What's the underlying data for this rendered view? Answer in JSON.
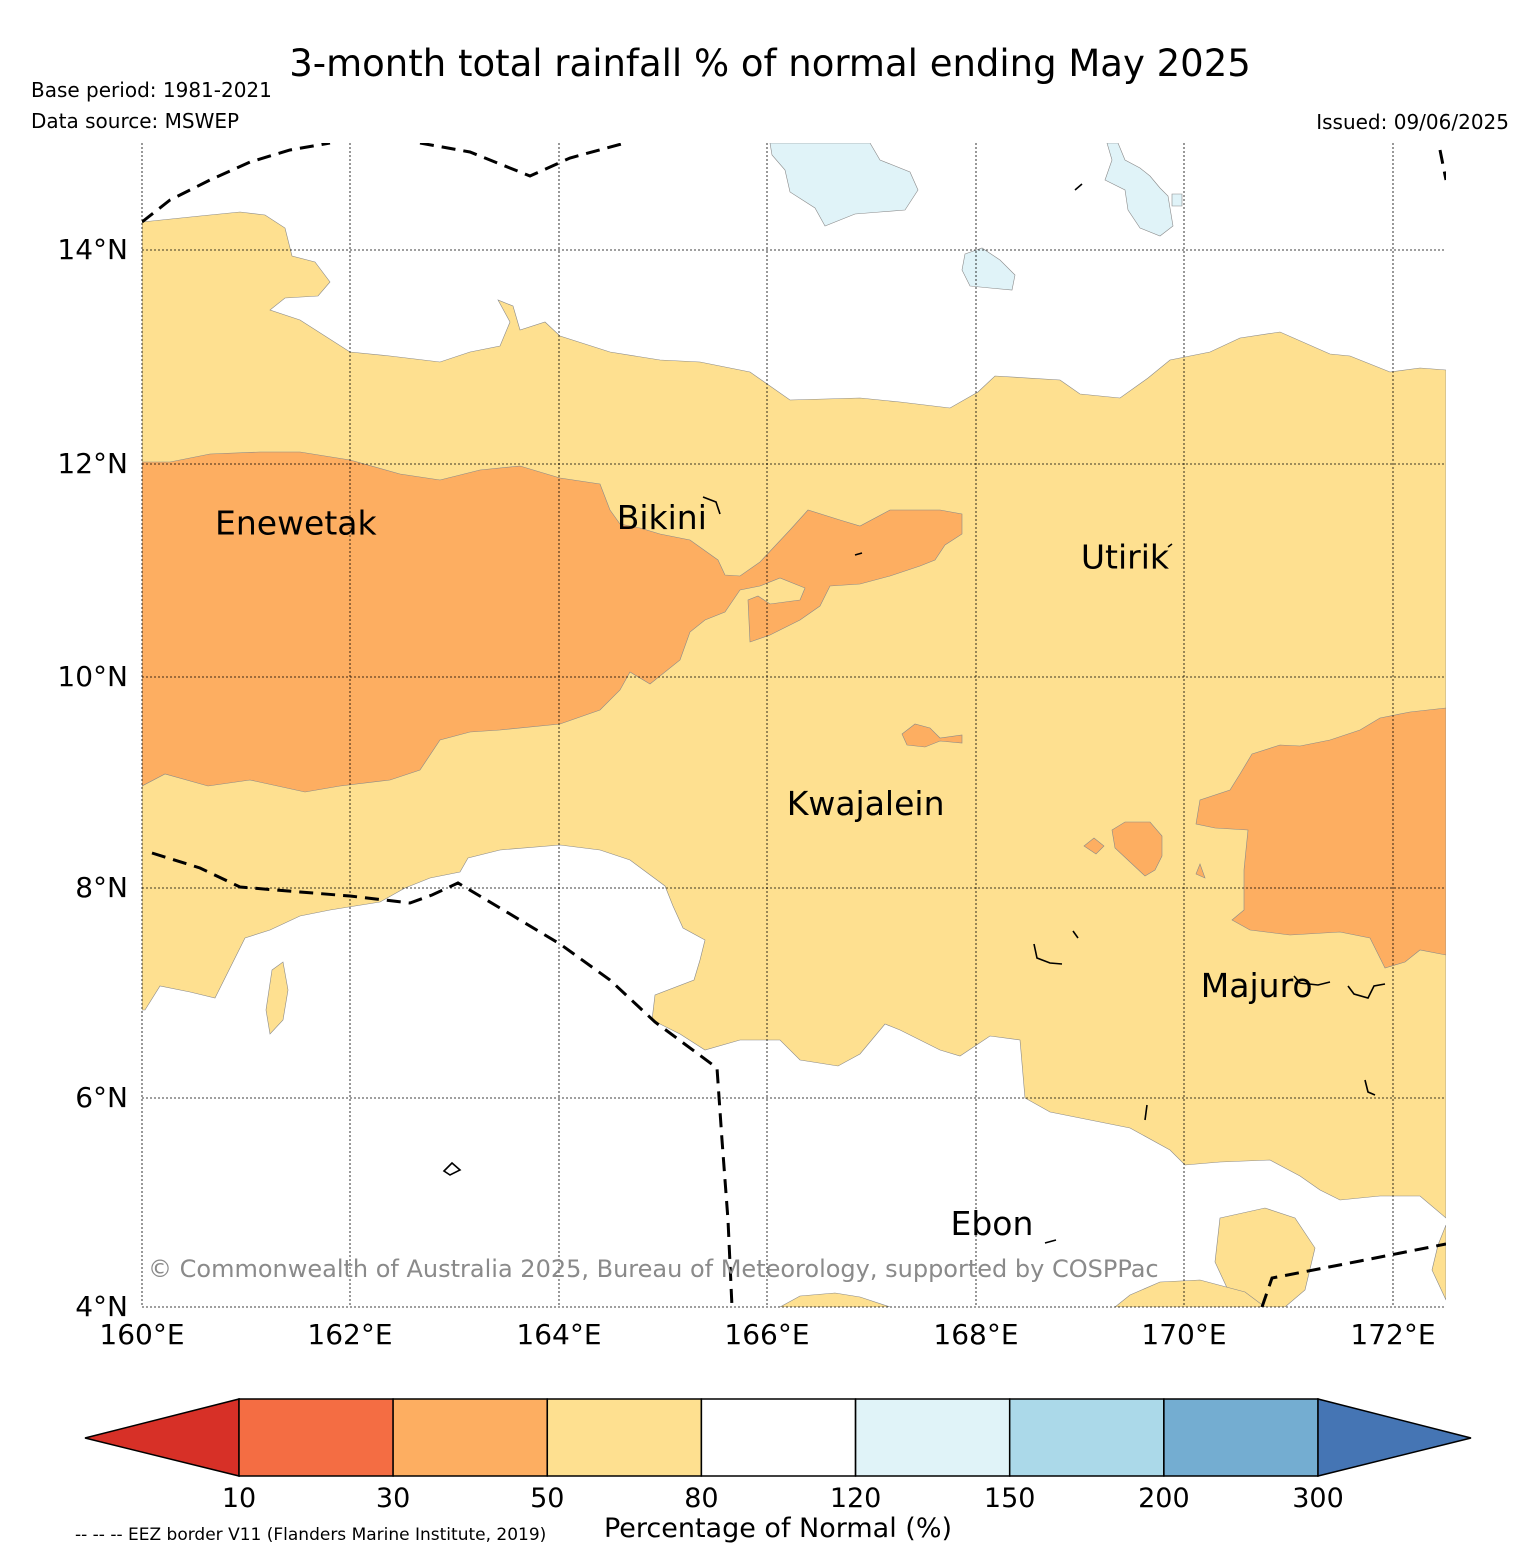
{
  "title": "3-month total rainfall % of normal ending May 2025",
  "base_period": "Base period: 1981-2021",
  "data_source": "Data source: MSWEP",
  "issued": "Issued: 09/06/2025",
  "copyright": "© Commonwealth of Australia 2025, Bureau of Meteorology, supported by COSPPac",
  "eez_note": "-- -- -- EEZ border V11 (Flanders Marine Institute, 2019)",
  "map": {
    "lon_range": [
      160,
      172.5
    ],
    "lat_range": [
      4,
      15
    ],
    "lat_ticks": [
      {
        "value": 14,
        "label": "14°N"
      },
      {
        "value": 12,
        "label": "12°N"
      },
      {
        "value": 10,
        "label": "10°N"
      },
      {
        "value": 8,
        "label": "8°N"
      },
      {
        "value": 6,
        "label": "6°N"
      },
      {
        "value": 4,
        "label": "4°N"
      }
    ],
    "lon_ticks": [
      {
        "value": 160,
        "label": "160°E"
      },
      {
        "value": 162,
        "label": "162°E"
      },
      {
        "value": 164,
        "label": "164°E"
      },
      {
        "value": 166,
        "label": "166°E"
      },
      {
        "value": 168,
        "label": "168°E"
      },
      {
        "value": 170,
        "label": "170°E"
      },
      {
        "value": 172,
        "label": "172°E"
      }
    ],
    "places": [
      {
        "name": "Enewetak",
        "lon": 160.7,
        "lat": 11.3
      },
      {
        "name": "Bikini",
        "lon": 164.55,
        "lat": 11.35
      },
      {
        "name": "Utirik",
        "lon": 169.0,
        "lat": 10.98
      },
      {
        "name": "Kwajalein",
        "lon": 166.18,
        "lat": 8.65
      },
      {
        "name": "Majuro",
        "lon": 170.15,
        "lat": 6.93
      },
      {
        "name": "Ebon",
        "lon": 167.75,
        "lat": 4.68
      }
    ]
  },
  "colorbar": {
    "label": "Percentage of Normal (%)",
    "ticks": [
      "10",
      "30",
      "50",
      "80",
      "120",
      "150",
      "200",
      "300"
    ],
    "under_color": "#d73027",
    "colors": [
      "#f46d43",
      "#fdae61",
      "#fee090",
      "#ffffff",
      "#e0f3f8",
      "#abd9e9",
      "#74add1"
    ],
    "over_color": "#4575b4"
  },
  "region_colors": {
    "30-50": "#fdae61",
    "50-80": "#fee090",
    "80-120": "#ffffff",
    "120-150": "#e0f3f8",
    "150-200": "#abd9e9"
  }
}
